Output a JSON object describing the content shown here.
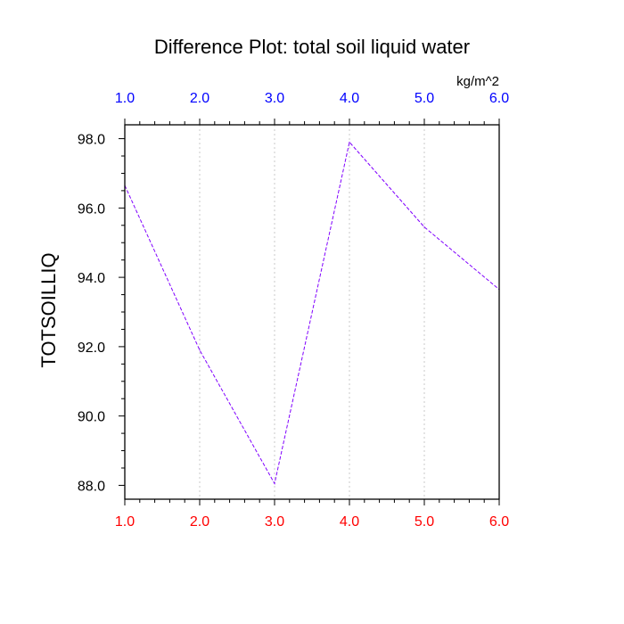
{
  "chart_data": {
    "type": "line",
    "title": "Difference Plot: total soil liquid water",
    "units": "kg/m^2",
    "ylabel": "TOTSOILLIQ",
    "x": [
      1,
      2,
      3,
      4,
      5,
      6
    ],
    "series": [
      {
        "values": [
          96.65,
          91.9,
          88.05,
          97.9,
          95.45,
          93.65
        ],
        "color": "#8000ff",
        "style": "dashed"
      }
    ],
    "xlim": [
      1,
      6
    ],
    "ylim": [
      87.6,
      98.4
    ],
    "xticks": [
      "1.0",
      "2.0",
      "3.0",
      "4.0",
      "5.0",
      "6.0"
    ],
    "yticks": [
      "88.0",
      "90.0",
      "92.0",
      "94.0",
      "96.0",
      "98.0"
    ],
    "ytick_values": [
      88,
      90,
      92,
      94,
      96,
      98
    ],
    "top_tick_color": "#0000ff",
    "bottom_tick_color": "#ff0000",
    "grid": "vertical dotted"
  }
}
